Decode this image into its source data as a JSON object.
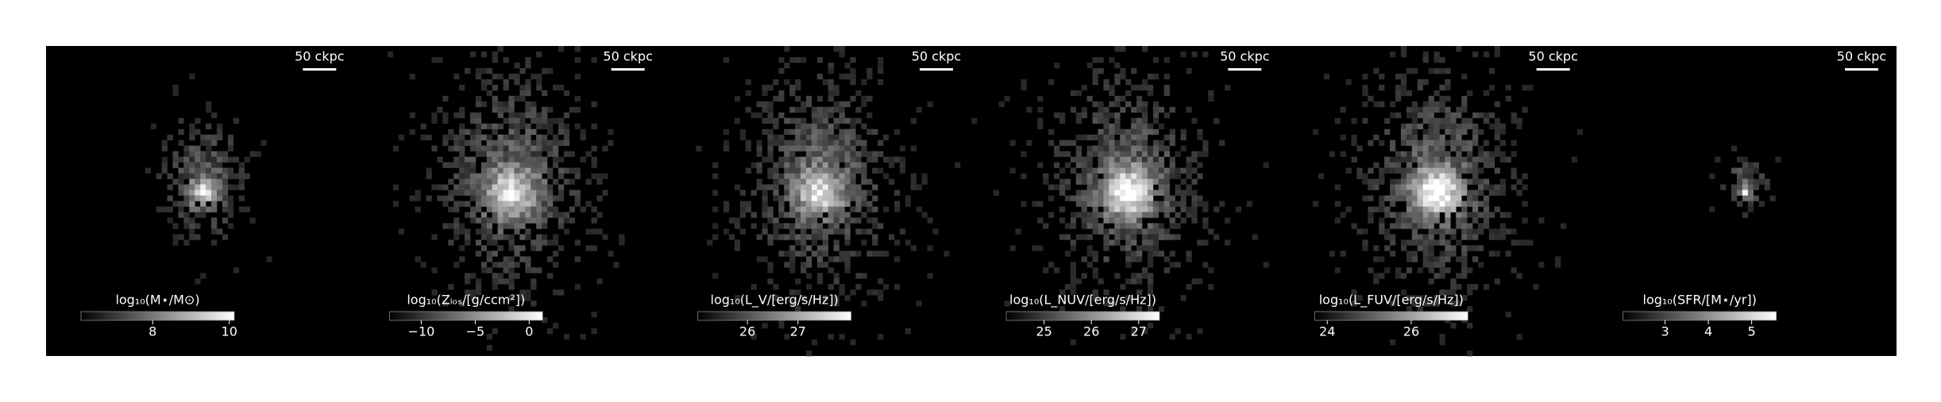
{
  "chart_data": [
    {
      "type": "image",
      "scale_label": "50 ckpc",
      "colorbar": {
        "label": "log₁₀(M⋆/M⊙)",
        "lim": [
          6.13,
          10.13
        ],
        "ticks": [
          8,
          10
        ]
      }
    },
    {
      "type": "image",
      "scale_label": "50 ckpc",
      "colorbar": {
        "label": "log₁₀(Zₗₒₛ/[g/ccm²])",
        "lim": [
          -12.95,
          1.25
        ],
        "ticks": [
          {
            "value": -10,
            "label": "−10"
          },
          {
            "value": -5,
            "label": "−5"
          },
          0
        ]
      }
    },
    {
      "type": "image",
      "scale_label": "50 ckpc",
      "colorbar": {
        "label": "log₁₀(L_V/[erg/s/Hz])",
        "lim": [
          25.02,
          28.05
        ],
        "ticks": [
          26,
          27
        ]
      }
    },
    {
      "type": "image",
      "scale_label": "50 ckpc",
      "colorbar": {
        "label": "log₁₀(L_NUV/[erg/s/Hz])",
        "lim": [
          24.2,
          27.44
        ],
        "ticks": [
          25,
          26,
          27
        ]
      }
    },
    {
      "type": "image",
      "scale_label": "50 ckpc",
      "colorbar": {
        "label": "log₁₀(L_FUV/[erg/s/Hz])",
        "lim": [
          23.7,
          27.35
        ],
        "ticks": [
          24,
          26
        ]
      }
    },
    {
      "type": "image",
      "scale_label": "50 ckpc",
      "colorbar": {
        "label": "log₁₀(SFR/[M⋆/yr])",
        "lim": [
          2.03,
          5.57
        ],
        "ticks": [
          3,
          4,
          5
        ]
      }
    }
  ]
}
